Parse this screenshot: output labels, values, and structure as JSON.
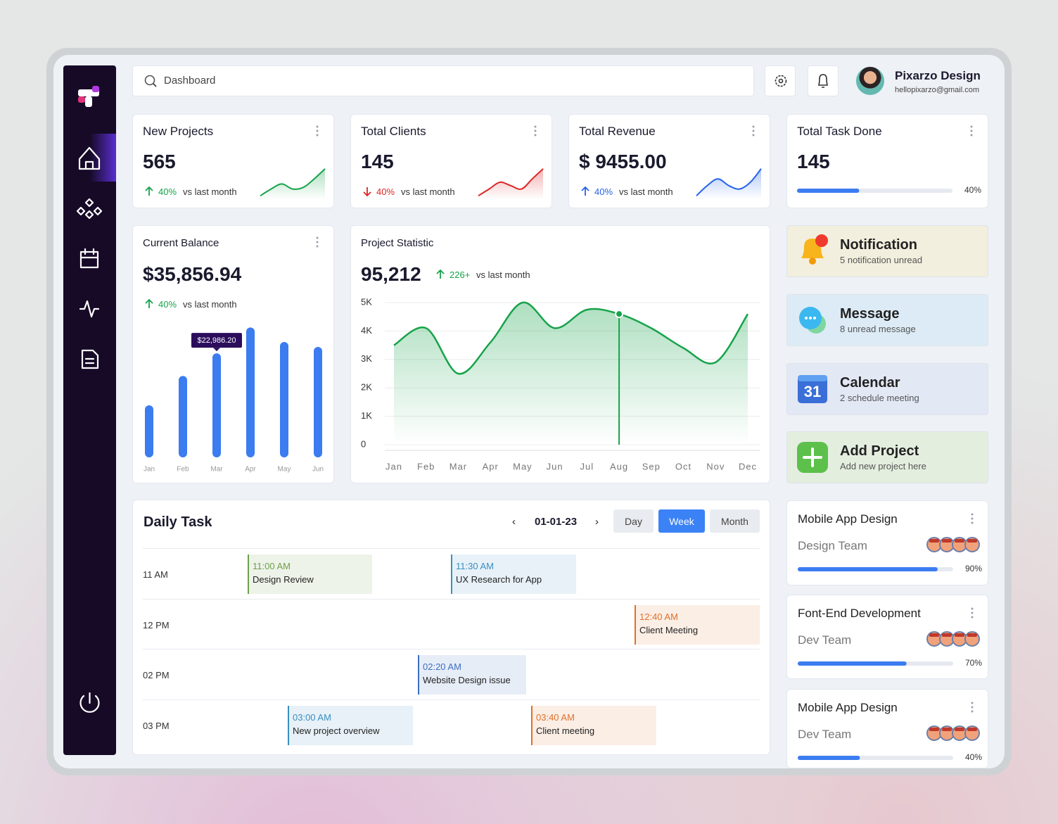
{
  "search": {
    "placeholder": "Dashboard"
  },
  "user": {
    "name": "Pixarzo Design",
    "email": "hellopixarzo@gmail.com"
  },
  "stats": [
    {
      "title": "New Projects",
      "value": "565",
      "change": "40%",
      "trend": "up",
      "note": "vs last month",
      "color": "#16a34a",
      "spark": {
        "ylim": [
          0,
          10
        ],
        "values": [
          1,
          3,
          4.5,
          3,
          3.5,
          6,
          9
        ]
      }
    },
    {
      "title": "Total Clients",
      "value": "145",
      "change": "40%",
      "trend": "down",
      "note": "vs last month",
      "color": "#dc2626",
      "spark": {
        "ylim": [
          0,
          10
        ],
        "values": [
          1,
          3,
          5,
          4,
          3,
          6,
          9
        ]
      }
    },
    {
      "title": "Total Revenue",
      "value": "$ 9455.00",
      "change": "40%",
      "trend": "up",
      "note": "vs last month",
      "color": "#2563eb",
      "spark": {
        "ylim": [
          0,
          10
        ],
        "values": [
          1,
          4,
          6,
          4,
          3,
          5,
          9
        ]
      }
    },
    {
      "title": "Total Task Done",
      "value": "145",
      "progress": {
        "value": 40,
        "label": "40%"
      }
    }
  ],
  "balance": {
    "title": "Current Balance",
    "amount": "$35,856.94",
    "change": "40%",
    "note": "vs last month",
    "chart_data": {
      "type": "bar",
      "categories": [
        "Jan",
        "Feb",
        "Mar",
        "Apr",
        "May",
        "Jun"
      ],
      "values": [
        11500,
        18000,
        22986.2,
        28700,
        25500,
        24400
      ],
      "value_labels": [
        null,
        null,
        "$22,986.20",
        null,
        null,
        null
      ],
      "ylim": [
        0,
        30000
      ],
      "color": "#3b7cf0"
    }
  },
  "statistic": {
    "title": "Project Statistic",
    "total": "95,212",
    "change": "226+",
    "note": "vs last month",
    "chart_data": {
      "type": "line",
      "categories": [
        "Jan",
        "Feb",
        "Mar",
        "Apr",
        "May",
        "Jun",
        "Jul",
        "Aug",
        "Sep",
        "Oct",
        "Nov",
        "Dec"
      ],
      "values": [
        3500,
        4100,
        2500,
        3600,
        5000,
        4100,
        4750,
        4600,
        4100,
        3400,
        2900,
        4600
      ],
      "ylim": [
        0,
        5000
      ],
      "yticks": [
        0,
        {
          "value": 1000,
          "label": "1K"
        },
        {
          "value": 2000,
          "label": "2K"
        },
        {
          "value": 3000,
          "label": "3K"
        },
        {
          "value": 4000,
          "label": "4K"
        },
        {
          "value": 5000,
          "label": "5K"
        }
      ],
      "grid": true,
      "color": "#16a34a",
      "highlight": "Aug"
    }
  },
  "shortcuts": [
    {
      "title": "Notification",
      "subtitle": "5 notification unread",
      "color": "#f3efde"
    },
    {
      "title": "Message",
      "subtitle": "8 unread message",
      "color": "#dcebf5"
    },
    {
      "title": "Calendar",
      "subtitle": "2 schedule meeting",
      "color": "#e3e8f5",
      "icon_text": "31"
    },
    {
      "title": "Add Project",
      "subtitle": "Add new project here",
      "color": "#e4eedf"
    }
  ],
  "daily_task": {
    "title": "Daily Task",
    "date": "01-01-23",
    "views": [
      "Day",
      "Week",
      "Month"
    ],
    "active_view": "Week",
    "rows": [
      {
        "label": "11 AM",
        "events": [
          {
            "time": "11:00 AM",
            "title": "Design Review",
            "color": "#6f9e4c"
          },
          {
            "time": "11:30 AM",
            "title": "UX Research for App",
            "color": "#3a8fc0"
          }
        ]
      },
      {
        "label": "12 PM",
        "events": [
          {
            "time": "12:40 AM",
            "title": "Client Meeting",
            "color": "#e0702a"
          }
        ]
      },
      {
        "label": "02 PM",
        "events": [
          {
            "time": "02:20 AM",
            "title": "Website Design issue",
            "color": "#3b6fc0"
          }
        ]
      },
      {
        "label": "03 PM",
        "events": [
          {
            "time": "03:00 AM",
            "title": "New project overview",
            "color": "#3a8fc0"
          },
          {
            "time": "03:40 AM",
            "title": "Client meeting",
            "color": "#e0702a"
          }
        ]
      }
    ]
  },
  "projects": [
    {
      "title": "Mobile App Design",
      "team": "Design Team",
      "progress": {
        "value": 90,
        "label": "90%"
      }
    },
    {
      "title": "Font-End Development",
      "team": "Dev Team",
      "progress": {
        "value": 70,
        "label": "70%"
      }
    },
    {
      "title": "Mobile App Design",
      "team": "Dev Team",
      "progress": {
        "value": 40,
        "label": "40%"
      }
    }
  ]
}
